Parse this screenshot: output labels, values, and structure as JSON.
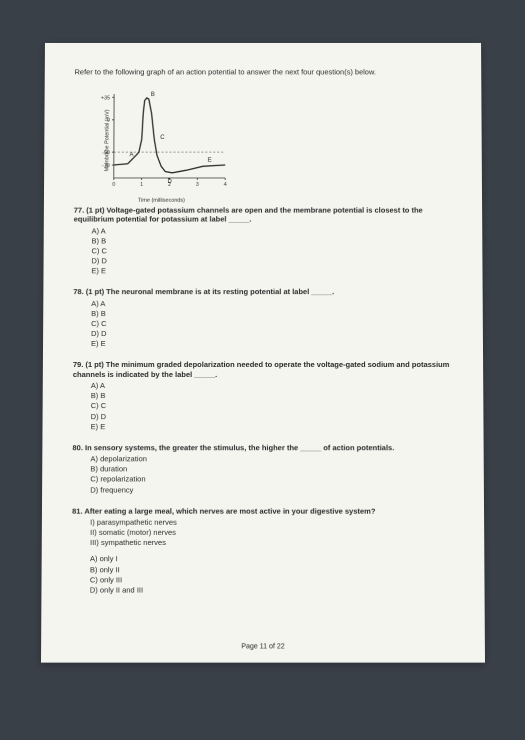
{
  "instruction": "Refer to the following graph of an action potential to answer the next four question(s) below.",
  "chart": {
    "type": "line",
    "xlabel": "Time (milliseconds)",
    "ylabel": "Membrane Potential (mV)",
    "xticks": [
      "0",
      "1",
      "2",
      "3",
      "4"
    ],
    "yticks": [
      "+35",
      "0",
      "-50",
      "-70"
    ],
    "threshold_y": -50,
    "resting_y": -70,
    "curve": [
      [
        0,
        -70
      ],
      [
        0.5,
        -68
      ],
      [
        0.8,
        -55
      ],
      [
        0.9,
        -50
      ],
      [
        1.0,
        -30
      ],
      [
        1.05,
        10
      ],
      [
        1.1,
        30
      ],
      [
        1.18,
        34
      ],
      [
        1.25,
        32
      ],
      [
        1.35,
        10
      ],
      [
        1.45,
        -30
      ],
      [
        1.55,
        -55
      ],
      [
        1.7,
        -72
      ],
      [
        1.85,
        -80
      ],
      [
        2.1,
        -82
      ],
      [
        2.6,
        -78
      ],
      [
        3.2,
        -72
      ],
      [
        4.0,
        -70
      ]
    ],
    "curve_color": "#2a2a2a",
    "threshold_color": "#555555",
    "grid_color": "#cccccc",
    "points": {
      "A": {
        "x": 0.85,
        "y": -52,
        "dx": -8,
        "dy": 3
      },
      "B": {
        "x": 1.18,
        "y": 34,
        "dx": 4,
        "dy": -2
      },
      "C": {
        "x": 1.45,
        "y": -28,
        "dx": 6,
        "dy": 1
      },
      "D": {
        "x": 2.0,
        "y": -82,
        "dx": -2,
        "dy": 10
      },
      "E": {
        "x": 3.3,
        "y": -71,
        "dx": 2,
        "dy": -4
      }
    },
    "xlim": [
      0,
      4
    ],
    "ylim": [
      -90,
      40
    ]
  },
  "questions": [
    {
      "num": "77.",
      "pts": "(1 pt)",
      "text": "Voltage-gated potassium channels are open and the membrane potential is closest to the equilibrium potential for potassium at label _____.",
      "options": [
        "A)  A",
        "B)  B",
        "C)  C",
        "D)  D",
        "E)  E"
      ]
    },
    {
      "num": "78.",
      "pts": "(1 pt)",
      "text": "The neuronal membrane is at its resting potential at label _____.",
      "options": [
        "A)  A",
        "B)  B",
        "C)  C",
        "D)  D",
        "E)  E"
      ]
    },
    {
      "num": "79.",
      "pts": "(1 pt)",
      "text": "The minimum graded depolarization needed to operate the voltage-gated sodium and potassium channels is indicated by the label _____.",
      "options": [
        "A)  A",
        "B)  B",
        "C)  C",
        "D)  D",
        "E)  E"
      ]
    },
    {
      "num": "80.",
      "pts": "",
      "text": "In sensory systems, the greater the stimulus, the higher the _____ of action potentials.",
      "options": [
        "A)  depolarization",
        "B)  duration",
        "C)  repolarization",
        "D)  frequency"
      ]
    },
    {
      "num": "81.",
      "pts": "",
      "text": "After eating a large meal, which nerves are most active in your digestive system?",
      "pre_options": [
        "I)   parasympathetic nerves",
        "II)  somatic (motor) nerves",
        "III) sympathetic nerves"
      ],
      "options": [
        "A)  only I",
        "B)  only II",
        "C)  only III",
        "D)  only II and III"
      ]
    }
  ],
  "footer": "Page 11 of 22"
}
